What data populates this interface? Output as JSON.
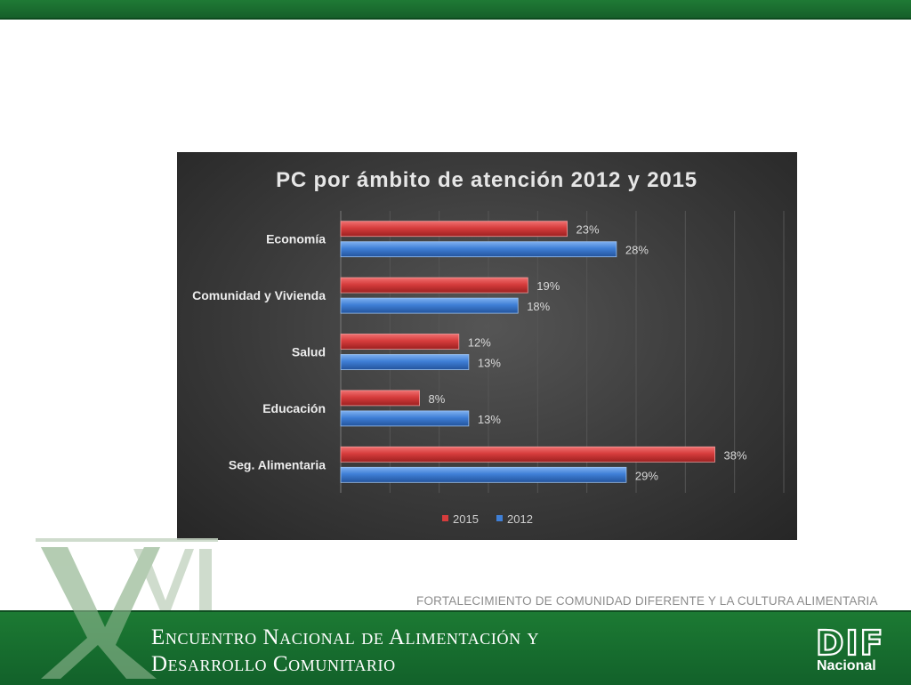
{
  "header": {
    "color": "#1f7a35"
  },
  "footer": {
    "line1": "Encuentro Nacional de Alimentación y",
    "line2": "Desarrollo Comunitario",
    "tagline": "FORTALECIMIENTO DE COMUNIDAD DIFERENTE Y LA CULTURA ALIMENTARIA",
    "logo_letters": "DIF",
    "logo_sub": "Nacional",
    "roman_numeral": "XVI",
    "color": "#1a7331"
  },
  "chart_data": {
    "type": "bar",
    "orientation": "horizontal",
    "title": "PC por ámbito de atención 2012 y 2015",
    "categories": [
      "Economía",
      "Comunidad y Vivienda",
      "Salud",
      "Educación",
      "Seg. Alimentaria"
    ],
    "series": [
      {
        "name": "2015",
        "values": [
          23,
          19,
          12,
          8,
          38
        ],
        "labels": [
          "23%",
          "19%",
          "12%",
          "8%",
          "38%"
        ],
        "color": "#d63c3c"
      },
      {
        "name": "2012",
        "values": [
          28,
          18,
          13,
          13,
          29
        ],
        "labels": [
          "28%",
          "18%",
          "13%",
          "13%",
          "29%"
        ],
        "color": "#3f7fd6"
      }
    ],
    "xlim": [
      0,
      45
    ],
    "grid": true,
    "legend": "bottom",
    "background": "#3a3a3a"
  }
}
